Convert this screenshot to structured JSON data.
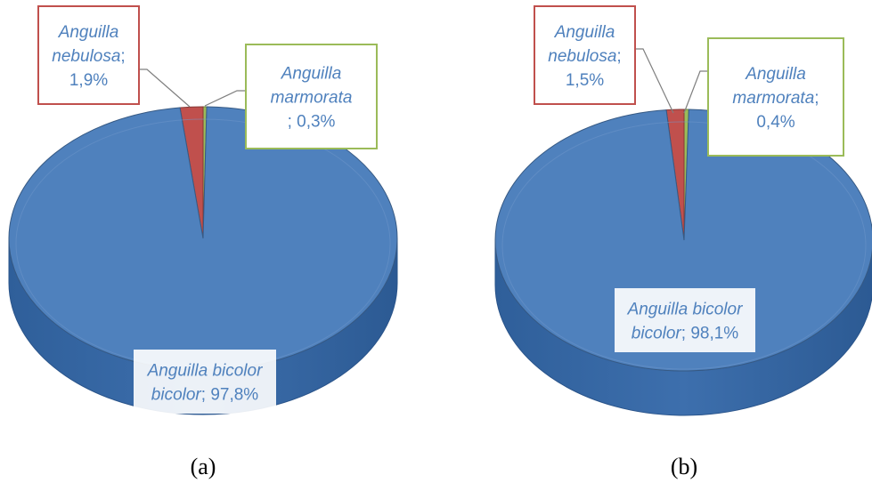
{
  "chart_data": [
    {
      "type": "pie",
      "caption": "(a)",
      "slices": [
        {
          "name": "Anguilla bicolor bicolor",
          "value": 97.8,
          "label_name": "Anguilla bicolor bicolor",
          "label_value": "97,8%",
          "color": "#4f81bd"
        },
        {
          "name": "Anguilla nebulosa",
          "value": 1.9,
          "label_name": "Anguilla nebulosa",
          "label_value": "1,9%",
          "color": "#c0504d"
        },
        {
          "name": "Anguilla marmorata",
          "value": 0.3,
          "label_name": "Anguilla marmorata",
          "label_value": "0,3%",
          "color": "#9bbb59"
        }
      ]
    },
    {
      "type": "pie",
      "caption": "(b)",
      "slices": [
        {
          "name": "Anguilla bicolor bicolor",
          "value": 98.1,
          "label_name": "Anguilla bicolor bicolor",
          "label_value": "98,1%",
          "color": "#4f81bd"
        },
        {
          "name": "Anguilla nebulosa",
          "value": 1.5,
          "label_name": "Anguilla nebulosa",
          "label_value": "1,5%",
          "color": "#c0504d"
        },
        {
          "name": "Anguilla marmorata",
          "value": 0.4,
          "label_name": "Anguilla marmorata",
          "label_value": "0,4%",
          "color": "#9bbb59"
        }
      ]
    }
  ],
  "colors": {
    "label_text": "#4f81bd",
    "nebulosa_border": "#c0504d",
    "marmorata_border": "#9bbb59"
  }
}
